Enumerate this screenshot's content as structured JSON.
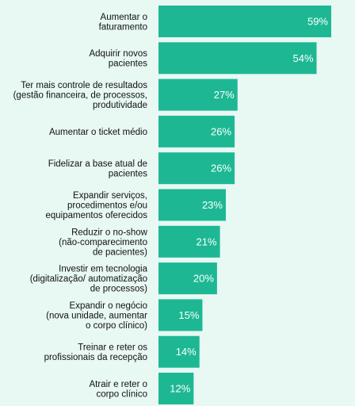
{
  "colors": {
    "background": "#e8f8f3",
    "bar": "#1db893",
    "value_text": "#ffffff",
    "label_text": "#111111"
  },
  "chart_data": {
    "type": "bar",
    "orientation": "horizontal",
    "categories": [
      [
        "Aumentar o",
        "faturamento"
      ],
      [
        "Adquirir novos",
        "pacientes"
      ],
      [
        "Ter mais controle de resultados",
        "(gestão financeira, de processos,",
        "produtividade"
      ],
      [
        "Aumentar o ticket médio"
      ],
      [
        "Fidelizar a base atual de",
        "pacientes"
      ],
      [
        "Expandir serviços,",
        "procedimentos e/ou",
        "equipamentos oferecidos"
      ],
      [
        "Reduzir o no-show",
        "(não-comparecimento",
        "de pacientes)"
      ],
      [
        "Investir em tecnologia",
        "(digitalização/ automatização",
        "de processos)"
      ],
      [
        "Expandir o negócio",
        "(nova unidade, aumentar",
        "o corpo clínico)"
      ],
      [
        "Treinar e reter os",
        "profissionais da recepção"
      ],
      [
        "Atrair e reter o",
        "corpo clínico"
      ]
    ],
    "values": [
      59,
      54,
      27,
      26,
      26,
      23,
      21,
      20,
      15,
      14,
      12
    ],
    "value_labels": [
      "59%",
      "54%",
      "27%",
      "26%",
      "26%",
      "23%",
      "21%",
      "20%",
      "15%",
      "14%",
      "12%"
    ],
    "xlim": [
      0,
      59
    ],
    "title": "",
    "xlabel": "",
    "ylabel": "",
    "grid": false,
    "legend": "none"
  }
}
